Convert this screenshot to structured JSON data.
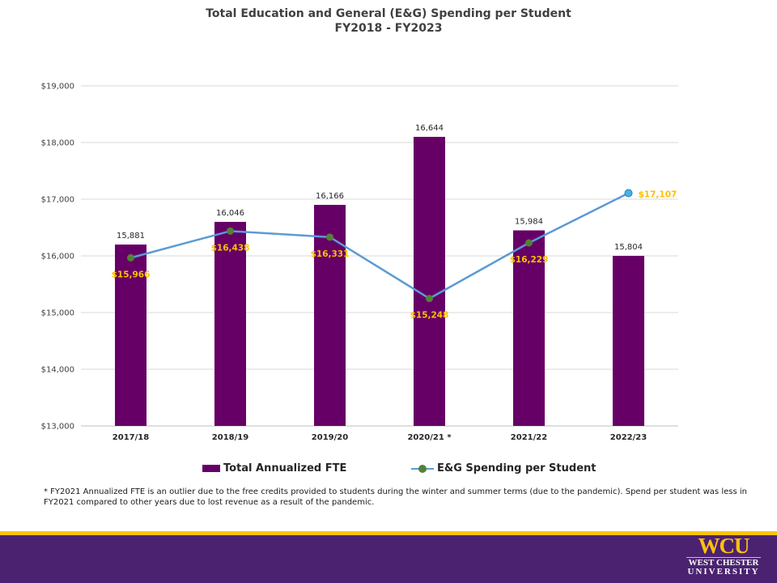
{
  "title": {
    "line1": "Total Education and General (E&G) Spending per Student",
    "line2": "FY2018 - FY2023"
  },
  "chart_data": {
    "type": "bar",
    "categories": [
      "2017/18",
      "2018/19",
      "2019/20",
      "2020/21 *",
      "2021/22",
      "2022/23"
    ],
    "ylim": [
      13000,
      19000
    ],
    "ytick_step": 1000,
    "ytick_labels": [
      "$13,000",
      "$14,000",
      "$15,000",
      "$16,000",
      "$17,000",
      "$18,000",
      "$19,000"
    ],
    "grid": true,
    "legend_position": "bottom",
    "series": [
      {
        "name": "Total Annualized FTE",
        "type": "bar",
        "values": [
          15881,
          16046,
          16166,
          16644,
          15984,
          15804
        ],
        "labels": [
          "15,881",
          "16,046",
          "16,166",
          "16,644",
          "15,984",
          "15,804"
        ],
        "color": "#660066",
        "bar_tops_on_axis": [
          16200,
          16600,
          16900,
          18100,
          16450,
          16000
        ]
      },
      {
        "name": "E&G Spending per Student",
        "type": "line",
        "values": [
          15966,
          16438,
          16331,
          15248,
          16229,
          17107
        ],
        "labels": [
          "$15,966",
          "$16,438",
          "$16,331",
          "$15,248",
          "$16,229",
          "$17,107"
        ],
        "color": "#5b9bd5",
        "marker_color": "#548235",
        "highlight_marker_color": "#41b6e6",
        "label_color": "#ffc000"
      }
    ]
  },
  "footnote": "* FY2021 Annualized FTE is an outlier due to the free credits provided to students during the winter and summer terms (due to the pandemic). Spend per student was less in FY2021 compared to other years due to lost revenue as a result of the pandemic.",
  "logo": {
    "mark": "WCU",
    "line1": "WEST CHESTER",
    "line2": "UNIVERSITY"
  },
  "colors": {
    "band": "#4b2270",
    "stripe": "#ffc20e"
  }
}
